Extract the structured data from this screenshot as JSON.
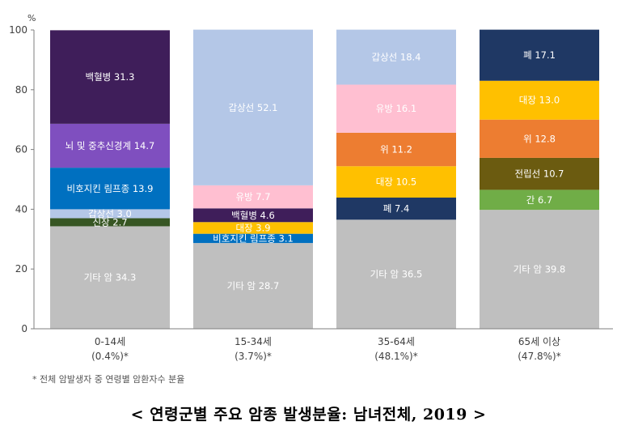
{
  "chart_data": {
    "type": "bar",
    "stacked": true,
    "y_unit": "%",
    "ylim": [
      0,
      100
    ],
    "yticks": [
      0,
      20,
      40,
      60,
      80,
      100
    ],
    "grid": false,
    "categories": [
      {
        "label": "0-14세",
        "sub": "(0.4%)*"
      },
      {
        "label": "15-34세",
        "sub": "(3.7%)*"
      },
      {
        "label": "35-64세",
        "sub": "(48.1%)*"
      },
      {
        "label": "65세 이상",
        "sub": "(47.8%)*"
      }
    ],
    "stacks": [
      [
        {
          "name": "기타 암",
          "value": 34.3,
          "color": "#bfbfbf",
          "text_color": "#ffffff"
        },
        {
          "name": "신장",
          "value": 2.7,
          "color": "#375623",
          "text_color": "#ffffff"
        },
        {
          "name": "갑상선",
          "value": 3.0,
          "color": "#b4c7e7",
          "text_color": "#ffffff"
        },
        {
          "name": "비호지킨 림프종",
          "value": 13.9,
          "color": "#0070c0",
          "text_color": "#ffffff"
        },
        {
          "name": "뇌 및 중추신경계",
          "value": 14.7,
          "color": "#7f4fbf",
          "text_color": "#ffffff"
        },
        {
          "name": "백혈병",
          "value": 31.3,
          "color": "#3f1e5a",
          "text_color": "#ffffff"
        }
      ],
      [
        {
          "name": "기타 암",
          "value": 28.7,
          "color": "#bfbfbf",
          "text_color": "#ffffff"
        },
        {
          "name": "비호지킨 림프종",
          "value": 3.1,
          "color": "#0070c0",
          "text_color": "#ffffff"
        },
        {
          "name": "대장",
          "value": 3.9,
          "color": "#ffc000",
          "text_color": "#ffffff"
        },
        {
          "name": "백혈병",
          "value": 4.6,
          "color": "#3f1e5a",
          "text_color": "#ffffff"
        },
        {
          "name": "유방",
          "value": 7.7,
          "color": "#ffbfd1",
          "text_color": "#ffffff"
        },
        {
          "name": "갑상선",
          "value": 52.1,
          "color": "#b4c7e7",
          "text_color": "#ffffff"
        }
      ],
      [
        {
          "name": "기타 암",
          "value": 36.5,
          "color": "#bfbfbf",
          "text_color": "#ffffff"
        },
        {
          "name": "폐",
          "value": 7.4,
          "color": "#1f3864",
          "text_color": "#ffffff"
        },
        {
          "name": "대장",
          "value": 10.5,
          "color": "#ffc000",
          "text_color": "#ffffff"
        },
        {
          "name": "위",
          "value": 11.2,
          "color": "#ed7d31",
          "text_color": "#ffffff"
        },
        {
          "name": "유방",
          "value": 16.1,
          "color": "#ffbfd1",
          "text_color": "#ffffff"
        },
        {
          "name": "갑상선",
          "value": 18.4,
          "color": "#b4c7e7",
          "text_color": "#ffffff"
        }
      ],
      [
        {
          "name": "기타 암",
          "value": 39.8,
          "color": "#bfbfbf",
          "text_color": "#ffffff"
        },
        {
          "name": "간",
          "value": 6.7,
          "color": "#70ad47",
          "text_color": "#ffffff"
        },
        {
          "name": "전립선",
          "value": 10.7,
          "color": "#6b5b10",
          "text_color": "#ffffff"
        },
        {
          "name": "위",
          "value": 12.8,
          "color": "#ed7d31",
          "text_color": "#ffffff"
        },
        {
          "name": "대장",
          "value": 13.0,
          "color": "#ffc000",
          "text_color": "#ffffff"
        },
        {
          "name": "폐",
          "value": 17.1,
          "color": "#1f3864",
          "text_color": "#ffffff"
        }
      ]
    ],
    "footnote": "* 전체 암발생자 중 연령별 암환자수 분율",
    "caption": "< 연령군별 주요 암종 발생분율: 남녀전체, 2019 >"
  }
}
